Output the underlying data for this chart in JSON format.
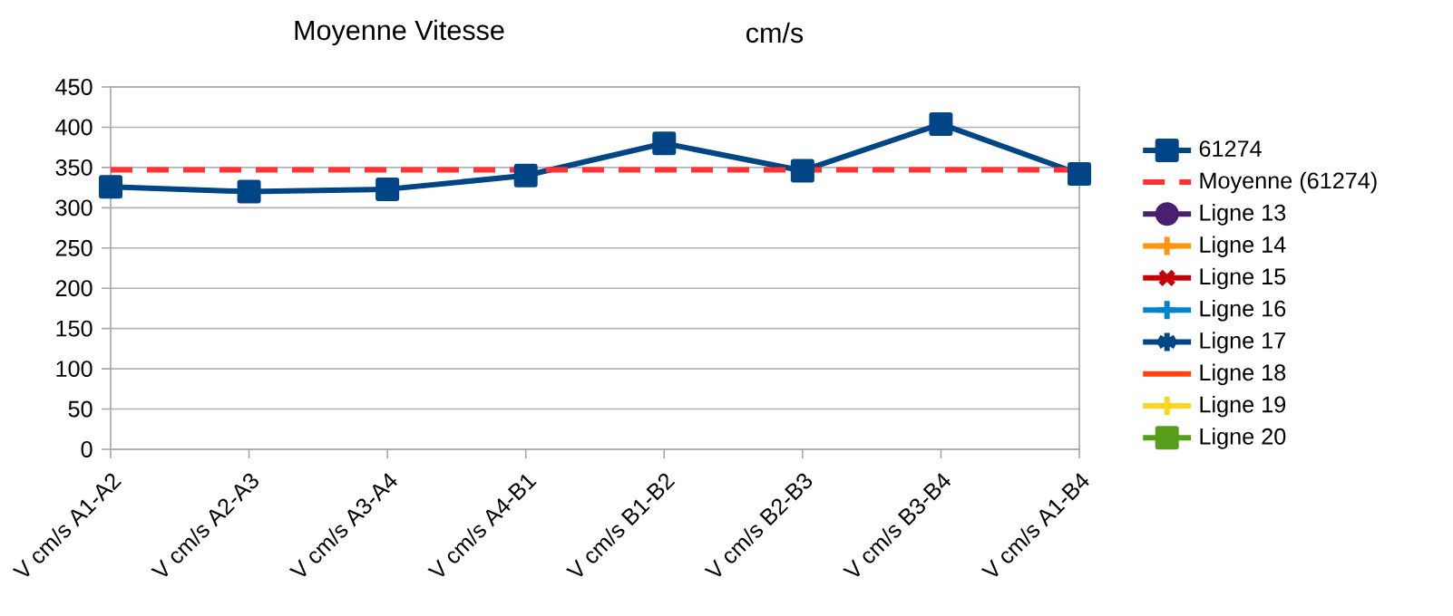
{
  "chart_data": {
    "type": "line",
    "title": "Moyenne Vitesse",
    "subtitle": "cm/s",
    "categories": [
      "V cm/s A1-A2",
      "V cm/s A2-A3",
      "V cm/s A3-A4",
      "V cm/s A4-B1",
      "V cm/s B1-B2",
      "V cm/s B2-B3",
      "V cm/s B3-B4",
      "V cm/s A1-B4"
    ],
    "series": [
      {
        "name": "61274",
        "color": "#004586",
        "marker": "square",
        "values": [
          326,
          320,
          323,
          340,
          380,
          346,
          404,
          342
        ]
      },
      {
        "name": "Moyenne (61274)",
        "color": "#ff3333",
        "marker": "none",
        "line_style": "dashed",
        "values": [
          347,
          347,
          347,
          347,
          347,
          347,
          347,
          347
        ]
      },
      {
        "name": "Ligne 13",
        "color": "#4b1f6f",
        "marker": "circle",
        "values": [
          null,
          null,
          null,
          null,
          null,
          null,
          null,
          null
        ]
      },
      {
        "name": "Ligne 14",
        "color": "#ff950e",
        "marker": "plus",
        "values": [
          null,
          null,
          null,
          null,
          null,
          null,
          null,
          null
        ]
      },
      {
        "name": "Ligne 15",
        "color": "#c5000b",
        "marker": "cross",
        "values": [
          null,
          null,
          null,
          null,
          null,
          null,
          null,
          null
        ]
      },
      {
        "name": "Ligne 16",
        "color": "#0084d1",
        "marker": "plus",
        "values": [
          null,
          null,
          null,
          null,
          null,
          null,
          null,
          null
        ]
      },
      {
        "name": "Ligne 17",
        "color": "#004586",
        "marker": "star",
        "values": [
          null,
          null,
          null,
          null,
          null,
          null,
          null,
          null
        ]
      },
      {
        "name": "Ligne 18",
        "color": "#ff420e",
        "marker": "none",
        "values": [
          null,
          null,
          null,
          null,
          null,
          null,
          null,
          null
        ]
      },
      {
        "name": "Ligne 19",
        "color": "#ffd320",
        "marker": "plus",
        "values": [
          null,
          null,
          null,
          null,
          null,
          null,
          null,
          null
        ]
      },
      {
        "name": "Ligne 20",
        "color": "#579d1c",
        "marker": "square",
        "values": [
          null,
          null,
          null,
          null,
          null,
          null,
          null,
          null
        ]
      }
    ],
    "ylim": [
      0,
      450
    ],
    "yticks": [
      0,
      50,
      100,
      150,
      200,
      250,
      300,
      350,
      400,
      450
    ],
    "grid": "y",
    "legend": "right",
    "line_style": "solid"
  }
}
